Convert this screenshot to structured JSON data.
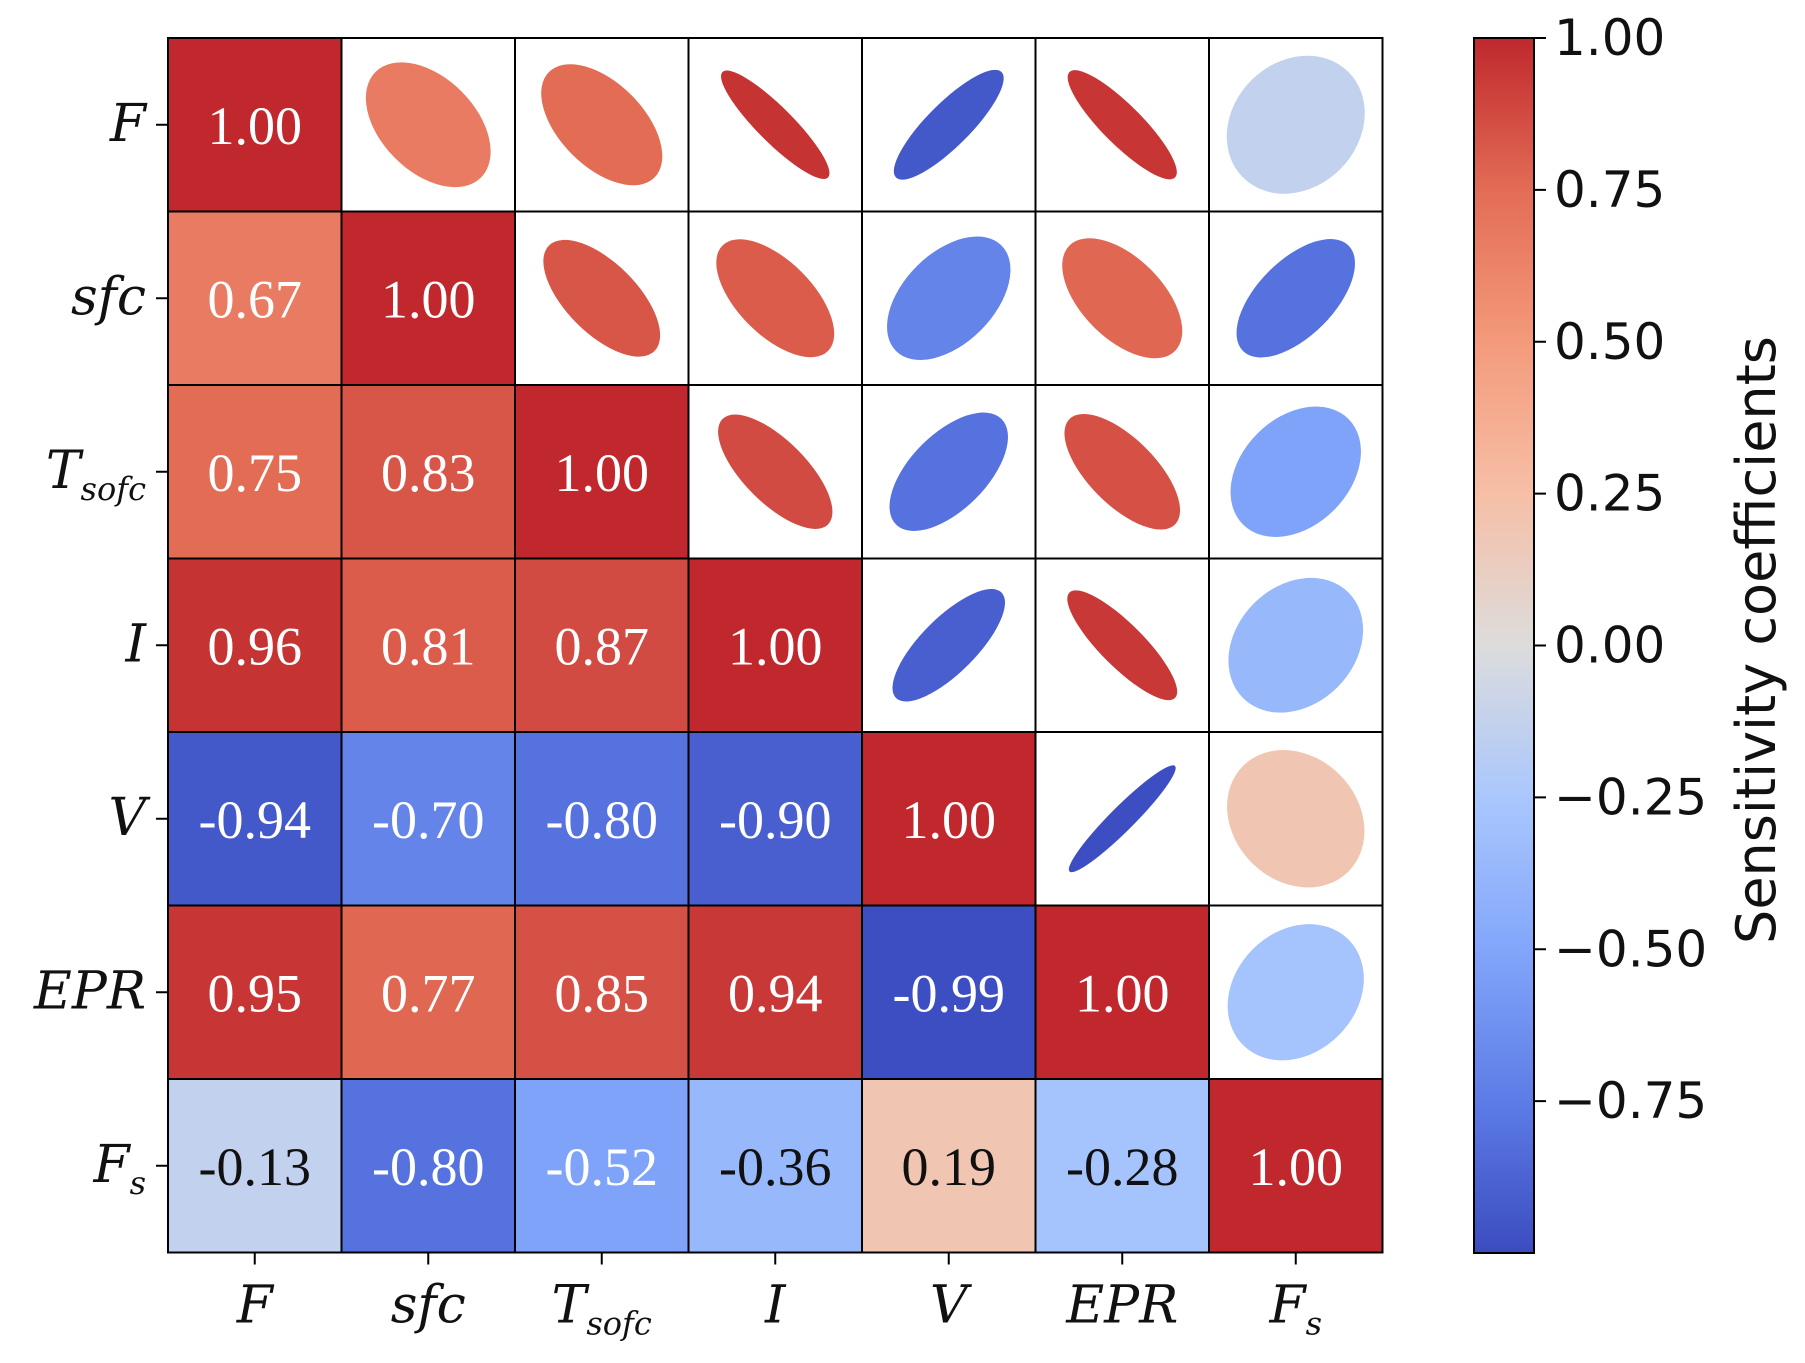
{
  "chart_data": {
    "type": "heatmap",
    "title": "",
    "variables": [
      {
        "base": "F",
        "sub": ""
      },
      {
        "base": "sfc",
        "sub": ""
      },
      {
        "base": "T",
        "sub": "sofc"
      },
      {
        "base": "I",
        "sub": ""
      },
      {
        "base": "V",
        "sub": ""
      },
      {
        "base": "EPR",
        "sub": ""
      },
      {
        "base": "F",
        "sub": "s"
      }
    ],
    "matrix": [
      [
        1.0,
        0.67,
        0.75,
        0.96,
        -0.94,
        0.95,
        -0.13
      ],
      [
        0.67,
        1.0,
        0.83,
        0.81,
        -0.7,
        0.77,
        -0.8
      ],
      [
        0.75,
        0.83,
        1.0,
        0.87,
        -0.8,
        0.85,
        -0.52
      ],
      [
        0.96,
        0.81,
        0.87,
        1.0,
        -0.9,
        0.94,
        -0.36
      ],
      [
        -0.94,
        -0.7,
        -0.8,
        -0.9,
        1.0,
        -0.99,
        0.19
      ],
      [
        0.95,
        0.77,
        0.85,
        0.94,
        -0.99,
        1.0,
        -0.28
      ],
      [
        -0.13,
        -0.8,
        -0.52,
        -0.36,
        0.19,
        -0.28,
        1.0
      ]
    ],
    "lower_triangle": "colored cells with value labels",
    "upper_triangle": "ellipses colored and oriented by coefficient",
    "colormap": "coolwarm",
    "colorbar": {
      "label": "Sensitivity coefficients",
      "range": [
        -1.0,
        1.0
      ],
      "ticks": [
        1.0,
        0.75,
        0.5,
        0.25,
        0.0,
        -0.25,
        -0.5,
        -0.75
      ],
      "tick_labels": [
        "1.00",
        "0.75",
        "0.50",
        "0.25",
        "0.00",
        "−0.25",
        "−0.50",
        "−0.75"
      ]
    }
  }
}
